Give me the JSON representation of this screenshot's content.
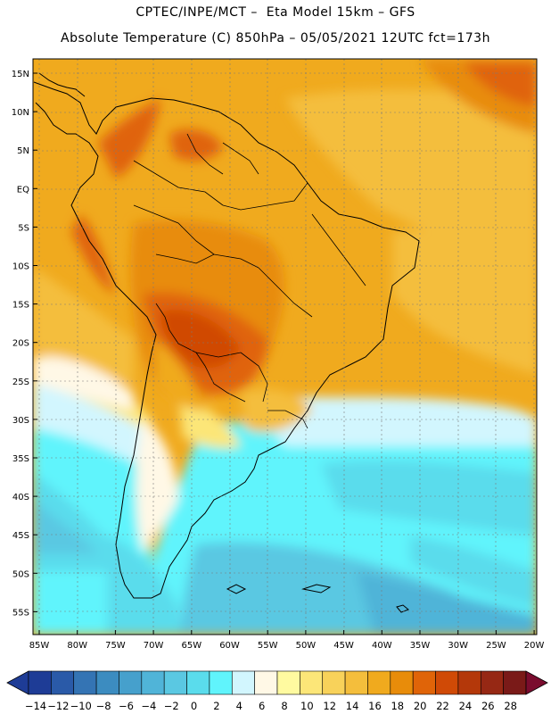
{
  "header": {
    "title_line1": "CPTEC/INPE/MCT –  Eta Model 15km – GFS",
    "title_line2": "Absolute Temperature (C) 850hPa – 05/05/2021 12UTC fct=173h"
  },
  "map": {
    "lat_labels": [
      "15N",
      "10N",
      "5N",
      "EQ",
      "5S",
      "10S",
      "15S",
      "20S",
      "25S",
      "30S",
      "35S",
      "40S",
      "45S",
      "50S",
      "55S"
    ],
    "lon_labels": [
      "85W",
      "80W",
      "75W",
      "70W",
      "65W",
      "60W",
      "55W",
      "50W",
      "45W",
      "40W",
      "35W",
      "30W",
      "25W",
      "20W"
    ],
    "lat_range": [
      -58,
      16.5
    ],
    "lon_range": [
      -86,
      -20
    ]
  },
  "colorbar": {
    "labels": [
      "-14",
      "-12",
      "-10",
      "-8",
      "-6",
      "-4",
      "-2",
      "0",
      "2",
      "4",
      "6",
      "8",
      "10",
      "12",
      "14",
      "16",
      "18",
      "20",
      "22",
      "24",
      "26",
      "28"
    ],
    "colors": [
      "#1e3c96",
      "#2a5aa8",
      "#3474b4",
      "#3c8cc0",
      "#46a0cc",
      "#50b4d8",
      "#5ac8e2",
      "#5adcec",
      "#60f4fc",
      "#d2f6fe",
      "#fff8e6",
      "#fffaa0",
      "#fce678",
      "#f8d25a",
      "#f4be3c",
      "#f0aa1e",
      "#e88c0a",
      "#e06408",
      "#d04a06",
      "#b4380a",
      "#962814",
      "#7a1a18"
    ]
  }
}
